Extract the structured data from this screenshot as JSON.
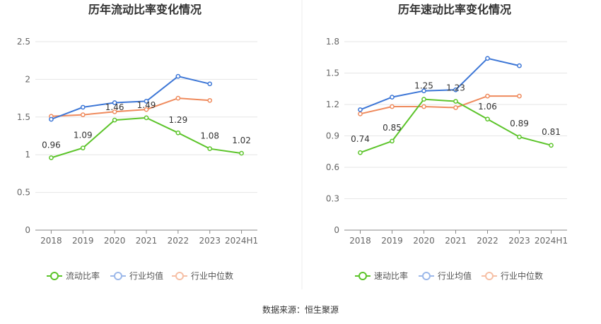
{
  "colors": {
    "ratio": "#5cc42a",
    "industry_avg": "#3c76d6",
    "industry_median": "#ef8a5c",
    "industry_avg_legend": "#9db9ea",
    "industry_median_legend": "#f6c0a6"
  },
  "source": "数据来源：恒生聚源",
  "chart_data": [
    {
      "type": "line",
      "title": "历年流动比率变化情况",
      "categories": [
        "2018",
        "2019",
        "2020",
        "2021",
        "2022",
        "2023",
        "2024H1"
      ],
      "ylim": [
        0,
        2.5
      ],
      "yticks": [
        "0",
        "0.5",
        "1",
        "1.5",
        "2",
        "2.5"
      ],
      "grid": true,
      "legend_position": "bottom",
      "series": [
        {
          "name": "流动比率",
          "values": [
            0.96,
            1.09,
            1.46,
            1.49,
            1.29,
            1.08,
            1.02
          ],
          "labels": [
            "0.96",
            "1.09",
            "1.46",
            "1.49",
            "1.29",
            "1.08",
            "1.02"
          ]
        },
        {
          "name": "行业均值",
          "values": [
            1.47,
            1.63,
            1.69,
            1.71,
            2.04,
            1.94,
            null
          ]
        },
        {
          "name": "行业中位数",
          "values": [
            1.51,
            1.53,
            1.57,
            1.6,
            1.75,
            1.72,
            null
          ]
        }
      ]
    },
    {
      "type": "line",
      "title": "历年速动比率变化情况",
      "categories": [
        "2018",
        "2019",
        "2020",
        "2021",
        "2022",
        "2023",
        "2024H1"
      ],
      "ylim": [
        0,
        1.8
      ],
      "yticks": [
        "0",
        "0.3",
        "0.6",
        "0.9",
        "1.2",
        "1.5",
        "1.8"
      ],
      "grid": true,
      "legend_position": "bottom",
      "series": [
        {
          "name": "速动比率",
          "values": [
            0.74,
            0.85,
            1.25,
            1.23,
            1.06,
            0.89,
            0.81
          ],
          "labels": [
            "0.74",
            "0.85",
            "1.25",
            "1.23",
            "1.06",
            "0.89",
            "0.81"
          ]
        },
        {
          "name": "行业均值",
          "values": [
            1.15,
            1.27,
            1.33,
            1.34,
            1.64,
            1.57,
            null
          ]
        },
        {
          "name": "行业中位数",
          "values": [
            1.11,
            1.18,
            1.18,
            1.17,
            1.28,
            1.28,
            null
          ]
        }
      ]
    }
  ]
}
